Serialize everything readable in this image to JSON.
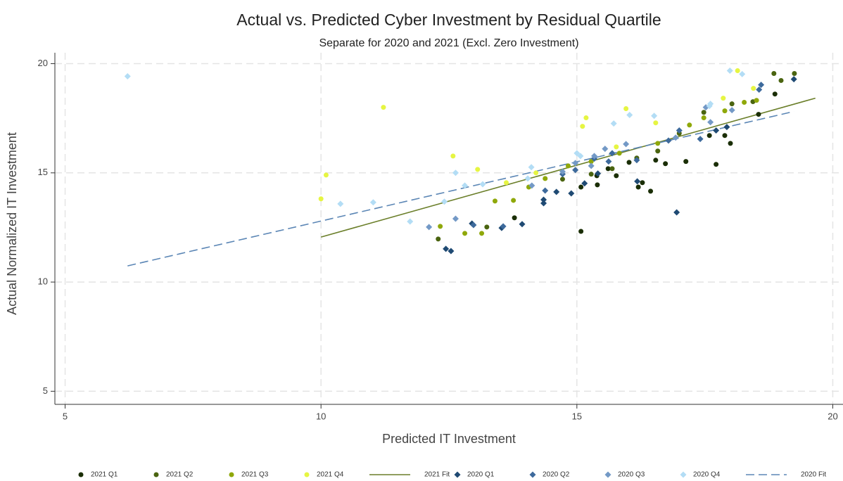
{
  "chart_data": {
    "type": "scatter",
    "title": "Actual vs. Predicted Cyber Investment by Residual Quartile",
    "subtitle": "Separate for 2020 and 2021 (Excl. Zero Investment)",
    "x_label": "Predicted IT Investment",
    "y_label": "Actual Normalized IT Investment",
    "xlim": [
      4.8,
      20.2
    ],
    "ylim": [
      4.4,
      20.5
    ],
    "xticks": [
      5,
      10,
      15,
      20
    ],
    "yticks": [
      5,
      10,
      15,
      20
    ],
    "grid": true,
    "legend": "bottom",
    "series": [
      {
        "name": "2021 Q1",
        "color": "#1a2e05",
        "marker": "circle",
        "x": [
          13.78,
          15.08,
          15.08,
          15.4,
          15.77,
          16.2,
          16.28,
          16.44,
          16.73,
          17.13,
          17.72,
          17.89,
          18.0,
          18.55,
          18.87,
          16.54,
          17.59,
          16.02,
          15.61,
          15.39
        ],
        "values": [
          12.94,
          12.32,
          14.35,
          14.45,
          14.87,
          14.35,
          14.55,
          14.16,
          15.42,
          15.52,
          15.39,
          16.71,
          16.35,
          17.68,
          18.61,
          15.58,
          16.71,
          15.48,
          15.19,
          14.87
        ]
      },
      {
        "name": "2021 Q2",
        "color": "#4a6410",
        "marker": "circle",
        "x": [
          12.29,
          13.24,
          14.72,
          15.28,
          15.69,
          16.17,
          16.58,
          17.0,
          17.48,
          18.03,
          18.44,
          18.85,
          18.99,
          19.25
        ],
        "values": [
          11.97,
          12.52,
          14.71,
          14.94,
          15.19,
          15.68,
          16.0,
          16.81,
          17.77,
          18.16,
          18.26,
          19.55,
          19.23,
          19.55
        ]
      },
      {
        "name": "2021 Q3",
        "color": "#8fa80a",
        "marker": "circle",
        "x": [
          12.33,
          12.81,
          13.14,
          13.4,
          13.76,
          14.06,
          14.38,
          14.83,
          15.28,
          15.83,
          16.58,
          17.2,
          17.48,
          17.89,
          18.27,
          18.51
        ],
        "values": [
          12.55,
          12.23,
          12.23,
          13.71,
          13.74,
          14.35,
          14.74,
          15.32,
          15.52,
          15.9,
          16.35,
          17.19,
          17.52,
          17.84,
          18.23,
          18.32
        ]
      },
      {
        "name": "2021 Q4",
        "color": "#e6f542",
        "marker": "circle",
        "x": [
          10.0,
          10.1,
          11.22,
          12.58,
          13.06,
          13.62,
          14.2,
          15.11,
          15.18,
          15.77,
          15.96,
          16.54,
          17.86,
          18.14,
          18.45
        ],
        "values": [
          13.81,
          14.9,
          18.0,
          15.77,
          15.16,
          14.55,
          15.0,
          17.13,
          17.52,
          16.19,
          17.94,
          17.29,
          18.42,
          19.68,
          18.87
        ]
      },
      {
        "name": "2021 Fit",
        "color": "#6b7f2a",
        "line": "solid",
        "x": [
          10.0,
          19.66
        ],
        "values": [
          12.06,
          18.42
        ]
      },
      {
        "name": "2020 Q1",
        "color": "#1f4a73",
        "marker": "diamond",
        "x": [
          12.44,
          12.54,
          12.95,
          13.53,
          13.93,
          14.35,
          14.35,
          14.6,
          14.89,
          15.15,
          15.41,
          16.18,
          16.95,
          17.93,
          17.72,
          19.24
        ],
        "values": [
          11.52,
          11.42,
          12.68,
          12.48,
          12.65,
          13.61,
          13.77,
          14.13,
          14.06,
          14.52,
          14.97,
          14.61,
          13.19,
          17.1,
          16.94,
          19.29
        ]
      },
      {
        "name": "2020 Q2",
        "color": "#3d6a9c",
        "marker": "diamond",
        "x": [
          12.98,
          13.56,
          14.38,
          14.72,
          15.34,
          15.69,
          16.17,
          16.79,
          17.0,
          17.41,
          18.56,
          18.6,
          14.97,
          15.62
        ],
        "values": [
          12.61,
          12.55,
          14.19,
          14.94,
          15.65,
          15.9,
          15.58,
          16.48,
          16.94,
          16.55,
          18.81,
          19.03,
          15.13,
          15.52
        ]
      },
      {
        "name": "2020 Q3",
        "color": "#7399c6",
        "marker": "diamond",
        "x": [
          12.11,
          12.63,
          14.12,
          14.72,
          15.28,
          15.55,
          15.96,
          16.93,
          17.61,
          17.52,
          18.03,
          14.97,
          15.34
        ],
        "values": [
          12.52,
          12.9,
          14.42,
          15.06,
          15.32,
          16.1,
          16.32,
          16.61,
          17.32,
          18.0,
          17.87,
          15.45,
          15.77
        ]
      },
      {
        "name": "2020 Q4",
        "color": "#b3ddf5",
        "marker": "diamond",
        "x": [
          6.22,
          10.38,
          11.02,
          11.74,
          12.41,
          12.63,
          12.81,
          13.16,
          14.04,
          14.11,
          15.0,
          15.07,
          15.72,
          16.03,
          16.51,
          17.59,
          17.61,
          17.99,
          18.23
        ],
        "values": [
          19.42,
          13.58,
          13.65,
          12.77,
          13.68,
          15.0,
          14.42,
          14.48,
          14.74,
          15.26,
          15.9,
          15.77,
          17.26,
          17.65,
          17.61,
          18.06,
          18.16,
          19.68,
          19.52
        ]
      },
      {
        "name": "2020 Fit",
        "color": "#5b86b5",
        "line": "dashed",
        "x": [
          6.22,
          19.24
        ],
        "values": [
          10.74,
          17.81
        ]
      }
    ]
  }
}
